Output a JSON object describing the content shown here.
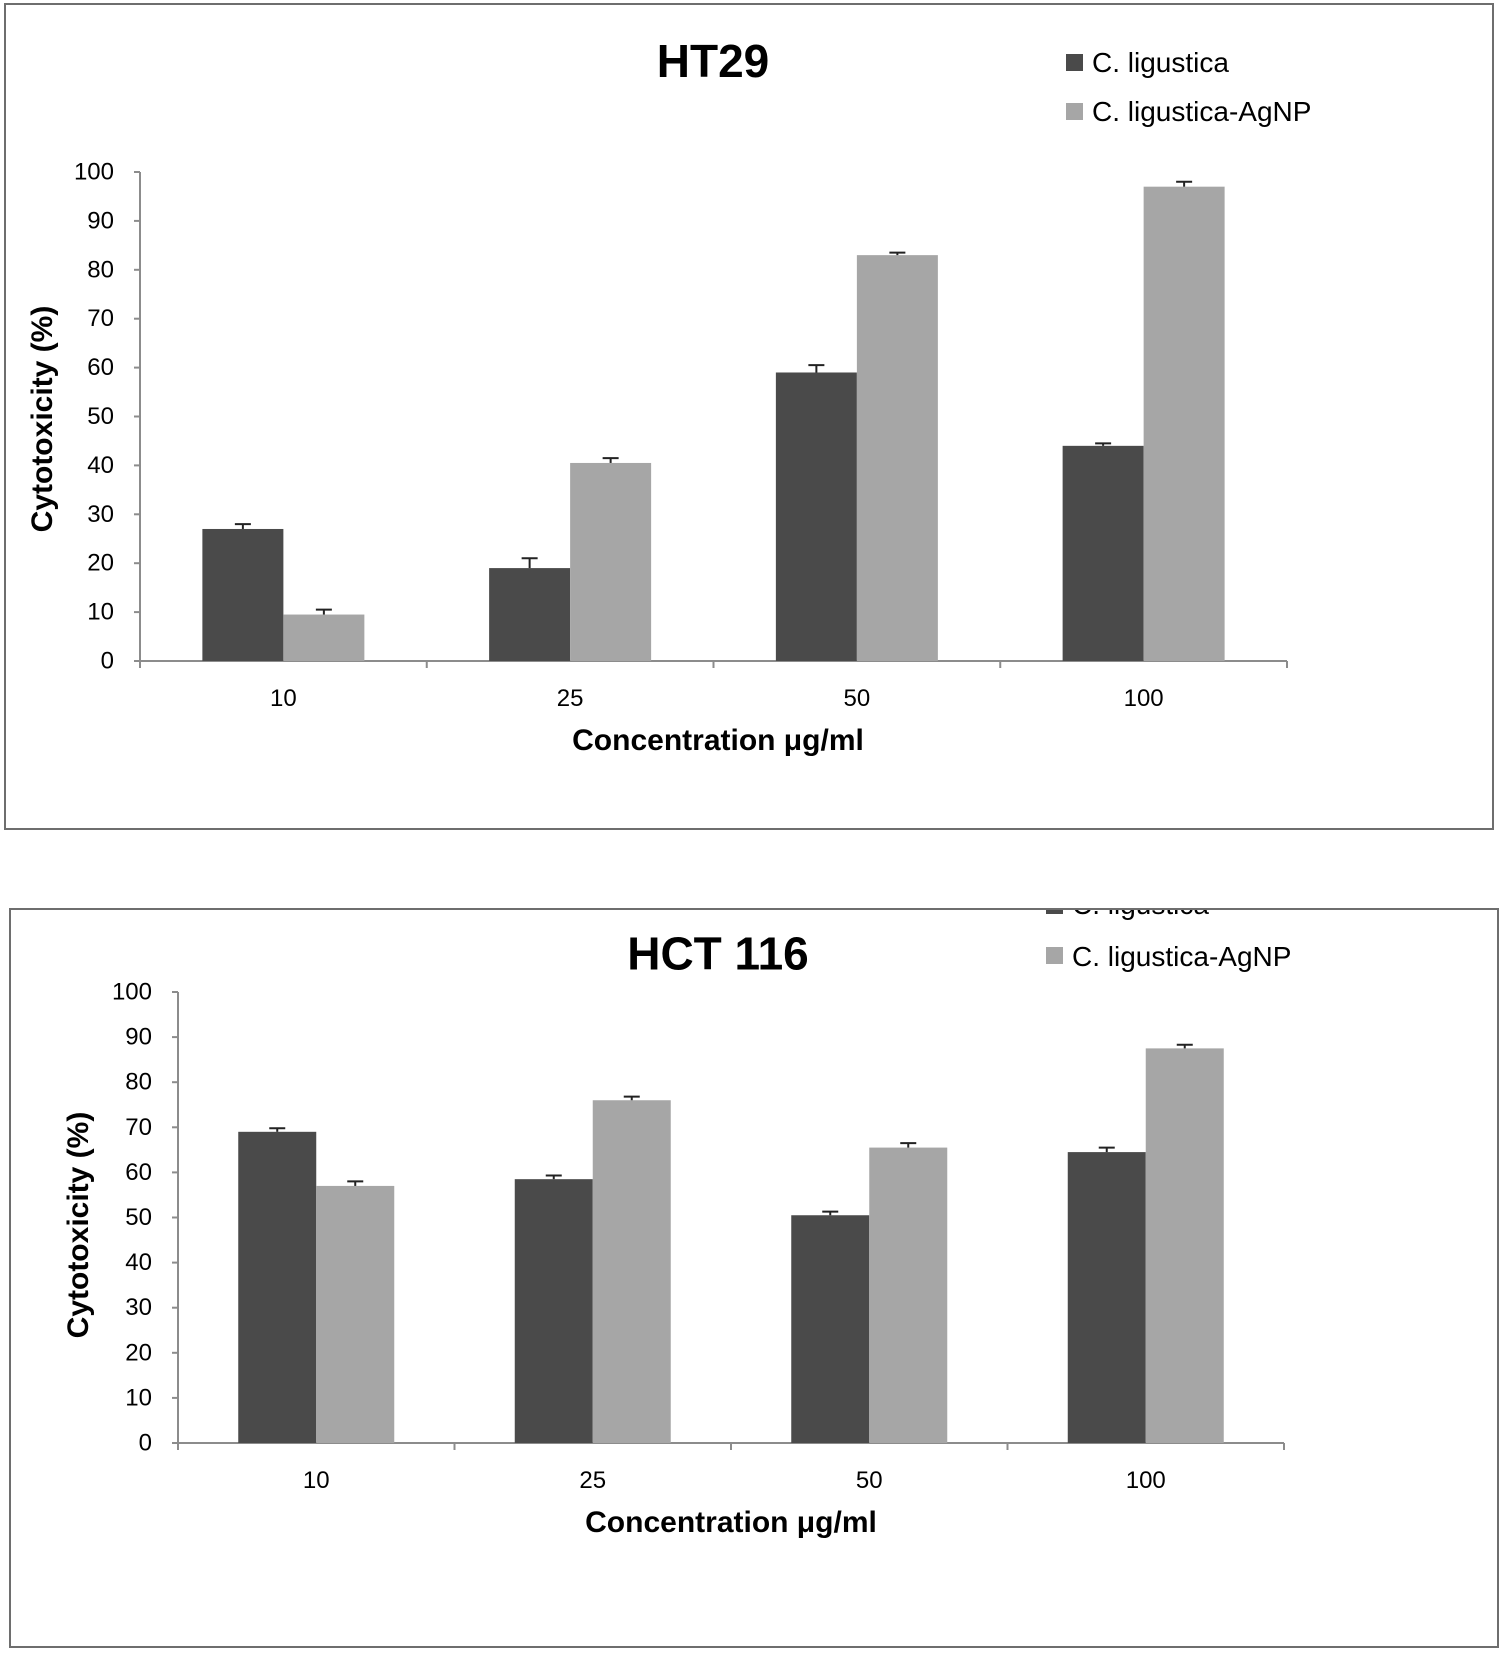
{
  "chart_data": [
    {
      "type": "bar",
      "title": "HT29",
      "xlabel": "Concentration μg/ml",
      "ylabel": "Cytotoxicity (%)",
      "ylim": [
        0,
        100
      ],
      "yticks": [
        0,
        10,
        20,
        30,
        40,
        50,
        60,
        70,
        80,
        90,
        100
      ],
      "categories": [
        "10",
        "25",
        "50",
        "100"
      ],
      "legend_position": "top-right",
      "series": [
        {
          "name": "C. ligustica",
          "color": "#4a4a4a",
          "values": [
            27,
            19,
            59,
            44
          ],
          "errors": [
            1.0,
            2.0,
            1.5,
            0.5
          ]
        },
        {
          "name": "C. ligustica-AgNP",
          "color": "#a6a6a6",
          "values": [
            9.5,
            40.5,
            83,
            97
          ],
          "errors": [
            1.0,
            1.0,
            0.5,
            1.0
          ]
        }
      ]
    },
    {
      "type": "bar",
      "title": "HCT 116",
      "xlabel": "Concentration μg/ml",
      "ylabel": "Cytotoxicity (%)",
      "ylim": [
        0,
        100
      ],
      "yticks": [
        0,
        10,
        20,
        30,
        40,
        50,
        60,
        70,
        80,
        90,
        100
      ],
      "categories": [
        "10",
        "25",
        "50",
        "100"
      ],
      "legend_position": "top-right",
      "series": [
        {
          "name": "C. ligustica",
          "color": "#4a4a4a",
          "values": [
            69,
            58.5,
            50.5,
            64.5
          ],
          "errors": [
            0.8,
            0.8,
            0.8,
            1.0
          ]
        },
        {
          "name": "C. ligustica-AgNP",
          "color": "#a6a6a6",
          "values": [
            57,
            76,
            65.5,
            87.5
          ],
          "errors": [
            1.0,
            0.8,
            1.0,
            0.8
          ]
        }
      ]
    }
  ]
}
